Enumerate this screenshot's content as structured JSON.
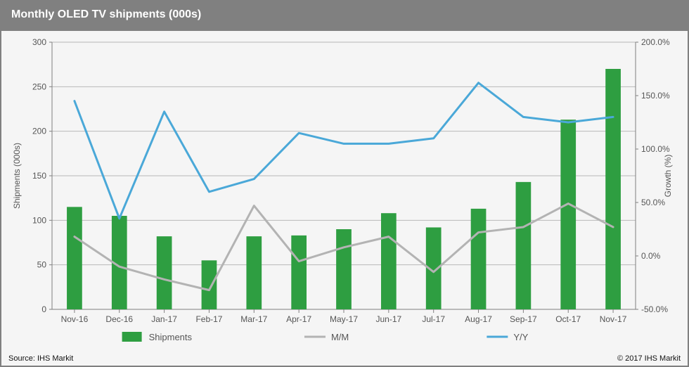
{
  "chart": {
    "type": "bar+line-dual-axis",
    "title": "Monthly OLED TV shipments (000s)",
    "title_fontsize": 16,
    "title_color": "#ffffff",
    "titlebar_bg": "#808080",
    "background_color": "#f5f5f5",
    "plot_background": "#f5f5f5",
    "grid_color": "#b8b8b8",
    "axis_color": "#808080",
    "categories": [
      "Nov-16",
      "Dec-16",
      "Jan-17",
      "Feb-17",
      "Mar-17",
      "Apr-17",
      "May-17",
      "Jun-17",
      "Jul-17",
      "Aug-17",
      "Sep-17",
      "Oct-17",
      "Nov-17"
    ],
    "bar": {
      "label": "Shipments",
      "color": "#2e9e41",
      "values": [
        115,
        105,
        82,
        55,
        82,
        83,
        90,
        108,
        92,
        113,
        143,
        213,
        270
      ],
      "width_ratio": 0.34
    },
    "line_mm": {
      "label": "M/M",
      "color": "#b3b3b3",
      "width": 3,
      "values_pct": [
        18,
        -10,
        -22,
        -32,
        47,
        -5,
        8,
        18,
        -15,
        22,
        27,
        49,
        27
      ]
    },
    "line_yy": {
      "label": "Y/Y",
      "color": "#4aa8d8",
      "width": 3,
      "values_pct": [
        145,
        35,
        135,
        60,
        72,
        115,
        105,
        105,
        110,
        162,
        130,
        125,
        130
      ]
    },
    "y_left": {
      "label": "Shipments (000s)",
      "min": 0,
      "max": 300,
      "tick_step": 50,
      "label_fontsize": 12
    },
    "y_right": {
      "label": "Growth (%)",
      "min": -50,
      "max": 200,
      "tick_step": 50,
      "tick_format_pct": true,
      "label_fontsize": 12
    },
    "legend": {
      "position": "bottom",
      "items": [
        "Shipments",
        "M/M",
        "Y/Y"
      ]
    },
    "footer": {
      "source": "Source: IHS Markit",
      "copyright": "© 2017 IHS Markit",
      "fontsize": 11
    }
  }
}
